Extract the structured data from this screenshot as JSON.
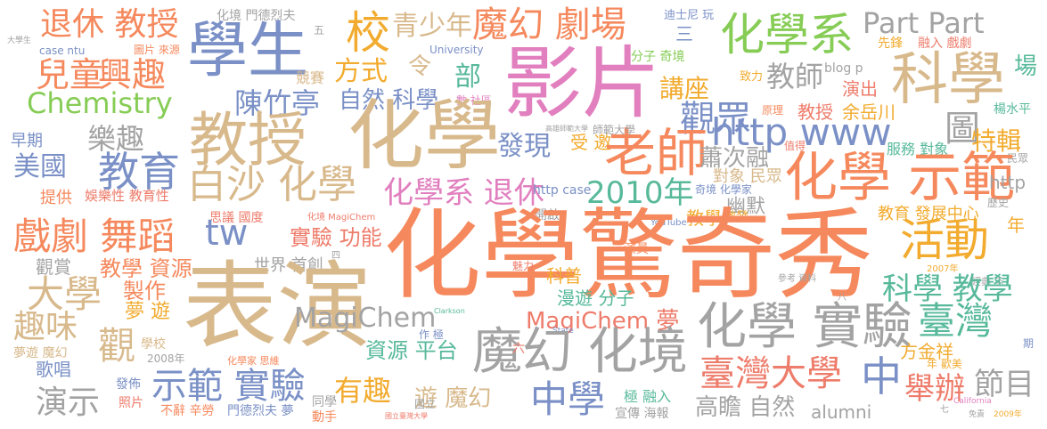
{
  "palette": {
    "orange": "#f5895d",
    "salmon": "#ee7c6b",
    "tan": "#d8b98c",
    "pink": "#e17fbf",
    "green": "#86cc55",
    "blue": "#7a90c6",
    "teal": "#57b99a",
    "gray": "#a3a3a3",
    "yellow": "#f2ab2f"
  },
  "words": [
    "退休 教授",
    "兒童",
    "興趣",
    "學生",
    "case ntu",
    "圖片 來源",
    "化境 門德烈夫",
    "五",
    "校",
    "青少年",
    "魔幻 劇場",
    "迪士尼 玩",
    "三",
    "化學系",
    "Part Part",
    "先鋒",
    "融入 戲劇",
    "場",
    "科學",
    "令",
    "方式",
    "部",
    "University",
    "競賽",
    "影片",
    "分子 奇境",
    "講座",
    "致力",
    "教師",
    "blog p",
    "演出",
    "Chemistry",
    "陳竹亭",
    "自然 科學",
    "數 社區",
    "化學",
    "觀眾",
    "原理",
    "教授",
    "余岳川",
    "楊水平",
    "樂趣",
    "早期",
    "教授",
    "http www",
    "圖",
    "發現",
    "受 邀",
    "老師",
    "蕭次融",
    "值得",
    "服務 對象",
    "特輯",
    "美國",
    "教育",
    "民眾",
    "化學 示範",
    "對象 民眾",
    "白沙 化學",
    "http",
    "化學系 退休",
    "2010年",
    "http case",
    "奇境 化學家",
    "提供",
    "娛樂性 教育性",
    "幽默",
    "歷史",
    "思議 國度",
    "化境 MagiChem",
    "開啟",
    "教學",
    "激發",
    "YouTube",
    "教育 發展中心",
    "年",
    "戲劇 舞蹈",
    "tw",
    "實驗 功能",
    "化學驚奇秀",
    "活動",
    "演員",
    "觀賞",
    "教學 資源",
    "世界 首創",
    "魅力",
    "科普",
    "2007年",
    "經典 年",
    "大學",
    "製作",
    "表演",
    "參考 資料",
    "科學 教學",
    "漫遊 分子",
    "趣味",
    "夢 遊",
    "臺灣",
    "化學 實驗",
    "MagiChem",
    "MagiChem 夢",
    "Clarkson",
    "作 極",
    "State",
    "觀",
    "學校",
    "魔幻 化境",
    "資源 平台",
    "六",
    "期",
    "方金祥",
    "夢遊 魔幻",
    "2008年",
    "化學家 思維",
    "臺灣大學",
    "中",
    "年 歡美",
    "歌唱",
    "示範 實驗",
    "節目",
    "舉辦",
    "發佈",
    "有趣",
    "遊 魔幻",
    "中學",
    "極 融入",
    "演示",
    "同學",
    "照片",
    "高瞻 自然",
    "alumni",
    "California",
    "不辭 辛勞",
    "門德烈夫 夢",
    "宣傳 海報",
    "國立",
    "動手",
    "七",
    "2009年",
    "免責",
    "八",
    "四",
    "大學生",
    "國立臺灣大學",
    "師範大學",
    "高雄師範大學"
  ]
}
